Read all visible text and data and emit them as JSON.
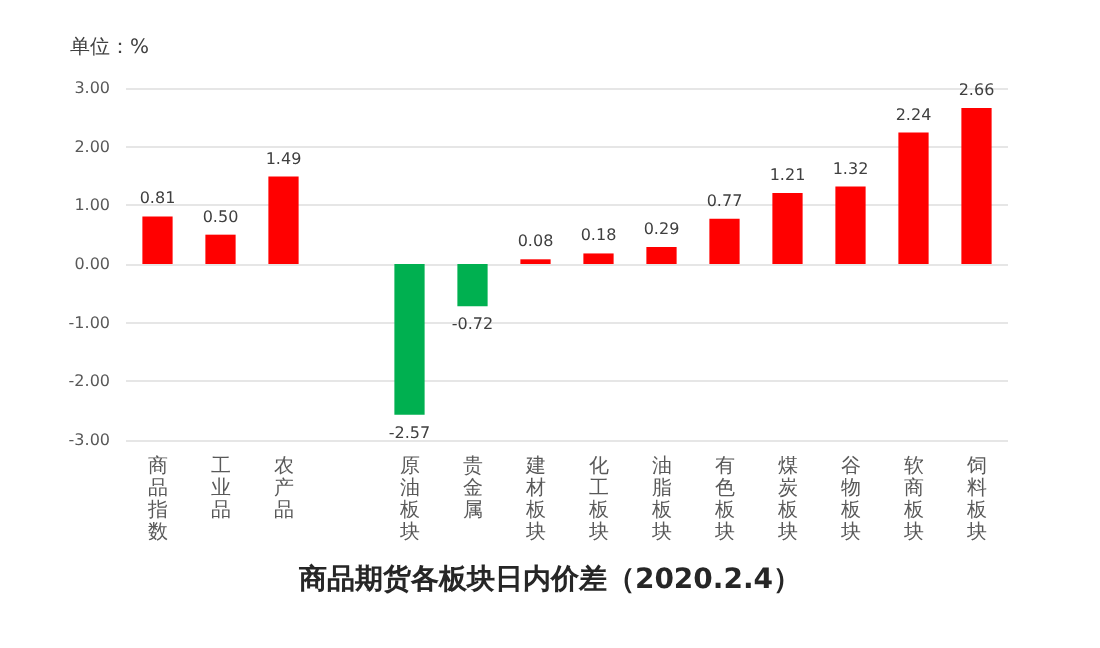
{
  "chart_data": {
    "type": "bar",
    "title": "商品期货各板块日内价差（2020.2.4）",
    "ylabel": "单位：%",
    "categories": [
      "商品指数",
      "工业品",
      "农产品",
      null,
      "原油板块",
      "贵金属",
      "建材板块",
      "化工板块",
      "油脂板块",
      "有色板块",
      "煤炭板块",
      "谷物板块",
      "软商板块",
      "饲料板块"
    ],
    "values": [
      0.81,
      0.5,
      1.49,
      null,
      -2.57,
      -0.72,
      0.08,
      0.18,
      0.29,
      0.77,
      1.21,
      1.32,
      2.24,
      2.66
    ],
    "colors": [
      "#ff0000",
      "#ff0000",
      "#ff0000",
      null,
      "#00b050",
      "#00b050",
      "#ff0000",
      "#ff0000",
      "#ff0000",
      "#ff0000",
      "#ff0000",
      "#ff0000",
      "#ff0000",
      "#ff0000"
    ],
    "value_labels": [
      "0.81",
      "0.50",
      "1.49",
      null,
      "-2.57",
      "-0.72",
      "0.08",
      "0.18",
      "0.29",
      "0.77",
      "1.21",
      "1.32",
      "2.24",
      "2.66"
    ],
    "ylim": [
      -3,
      3
    ],
    "yticks": [
      {
        "value": -3,
        "label": "-3.00"
      },
      {
        "value": -2,
        "label": "-2.00"
      },
      {
        "value": -1,
        "label": "-1.00"
      },
      {
        "value": 0,
        "label": "0.00"
      },
      {
        "value": 1,
        "label": "1.00"
      },
      {
        "value": 2,
        "label": "2.00"
      },
      {
        "value": 3,
        "label": "3.00"
      }
    ],
    "grid": "y"
  }
}
